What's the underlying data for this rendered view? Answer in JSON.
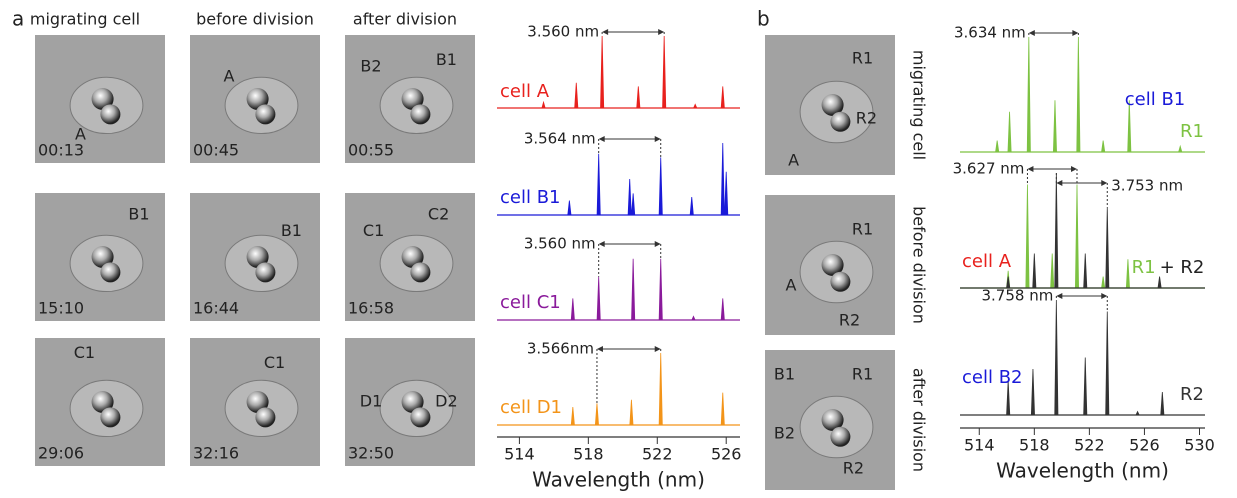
{
  "panel_a": {
    "label": "a",
    "column_titles": [
      "migrating cell",
      "before division",
      "after division"
    ],
    "images": [
      [
        {
          "time": "00:13",
          "labels": [
            {
              "text": "A",
              "color": "#e8211d"
            }
          ]
        },
        {
          "time": "00:45",
          "labels": [
            {
              "text": "A",
              "color": "#e8211d"
            }
          ]
        },
        {
          "time": "00:55",
          "labels": [
            {
              "text": "B2",
              "color": "#1a1ad8"
            },
            {
              "text": "B1",
              "color": "#1a1ad8"
            }
          ]
        }
      ],
      [
        {
          "time": "15:10",
          "labels": [
            {
              "text": "B1",
              "color": "#1a1ad8"
            }
          ]
        },
        {
          "time": "16:44",
          "labels": [
            {
              "text": "B1",
              "color": "#1a1ad8"
            }
          ]
        },
        {
          "time": "16:58",
          "labels": [
            {
              "text": "C1",
              "color": "#8a1a9b"
            },
            {
              "text": "C2",
              "color": "#8a1a9b"
            }
          ]
        }
      ],
      [
        {
          "time": "29:06",
          "labels": [
            {
              "text": "C1",
              "color": "#8a1a9b"
            }
          ]
        },
        {
          "time": "32:16",
          "labels": [
            {
              "text": "C1",
              "color": "#8a1a9b"
            }
          ]
        },
        {
          "time": "32:50",
          "labels": [
            {
              "text": "D1",
              "color": "#f39419"
            },
            {
              "text": "D2",
              "color": "#f39419"
            }
          ]
        }
      ]
    ],
    "spectra": {
      "xlim": [
        512.7,
        526.8
      ],
      "xticks": [
        514,
        518,
        522,
        526
      ],
      "xlabel": "Wavelength (nm)",
      "plots": [
        {
          "labels": [
            [
              {
                "text": "cell A",
                "color": "#e8211d"
              }
            ]
          ],
          "spacings": [
            {
              "text": "3.560 nm",
              "from": 518.8,
              "to": 522.4
            }
          ],
          "series": [
            {
              "color": "#e8211d",
              "peaks": [
                [
                  515.4,
                  0.08
                ],
                [
                  517.3,
                  0.35
                ],
                [
                  518.8,
                  1.0
                ],
                [
                  520.9,
                  0.3
                ],
                [
                  522.4,
                  1.0
                ],
                [
                  524.2,
                  0.05
                ],
                [
                  525.8,
                  0.3
                ]
              ]
            }
          ]
        },
        {
          "labels": [
            [
              {
                "text": "cell B1",
                "color": "#1a1ad8"
              }
            ]
          ],
          "spacings": [
            {
              "text": "3.564 nm",
              "from": 518.6,
              "to": 522.2
            }
          ],
          "series": [
            {
              "color": "#1a1ad8",
              "peaks": [
                [
                  516.9,
                  0.2
                ],
                [
                  518.6,
                  0.85
                ],
                [
                  520.4,
                  0.5
                ],
                [
                  520.6,
                  0.3
                ],
                [
                  522.2,
                  0.8
                ],
                [
                  524.0,
                  0.25
                ],
                [
                  525.8,
                  1.0
                ],
                [
                  526.0,
                  0.6
                ]
              ]
            }
          ]
        },
        {
          "labels": [
            [
              {
                "text": "cell C1",
                "color": "#8a1a9b"
              }
            ]
          ],
          "spacings": [
            {
              "text": "3.560 nm",
              "from": 518.6,
              "to": 522.2
            }
          ],
          "series": [
            {
              "color": "#8a1a9b",
              "peaks": [
                [
                  517.1,
                  0.3
                ],
                [
                  518.6,
                  0.6
                ],
                [
                  520.6,
                  0.85
                ],
                [
                  522.2,
                  0.85
                ],
                [
                  524.1,
                  0.05
                ],
                [
                  525.8,
                  0.3
                ]
              ]
            }
          ]
        },
        {
          "labels": [
            [
              {
                "text": "cell D1",
                "color": "#f39419"
              }
            ]
          ],
          "spacings": [
            {
              "text": "3.566nm",
              "from": 518.5,
              "to": 522.2
            }
          ],
          "series": [
            {
              "color": "#f39419",
              "peaks": [
                [
                  517.1,
                  0.25
                ],
                [
                  518.5,
                  0.3
                ],
                [
                  520.5,
                  0.35
                ],
                [
                  522.2,
                  1.0
                ],
                [
                  525.8,
                  0.45
                ]
              ]
            }
          ]
        }
      ]
    }
  },
  "panel_b": {
    "label": "b",
    "row_titles": [
      "migrating cell",
      "before division",
      "after division"
    ],
    "images": [
      {
        "labels": [
          {
            "text": "R1",
            "color": "#7dc242"
          },
          {
            "text": "R2",
            "color": "#333333"
          },
          {
            "text": "A",
            "color": "#e8211d"
          }
        ]
      },
      {
        "labels": [
          {
            "text": "R1",
            "color": "#7dc242"
          },
          {
            "text": "A",
            "color": "#e8211d"
          },
          {
            "text": "R2",
            "color": "#333333"
          }
        ]
      },
      {
        "labels": [
          {
            "text": "B1",
            "color": "#1a1ad8"
          },
          {
            "text": "R1",
            "color": "#7dc242"
          },
          {
            "text": "B2",
            "color": "#1a1ad8"
          },
          {
            "text": "R2",
            "color": "#333333"
          }
        ]
      }
    ],
    "spectra": {
      "xlim": [
        512.6,
        530.4
      ],
      "xticks": [
        514,
        518,
        522,
        526,
        530
      ],
      "xlabel": "Wavelength (nm)",
      "plots": [
        {
          "labels": [
            [
              {
                "text": "cell B1",
                "color": "#1a1ad8"
              }
            ],
            [
              {
                "text": "R1",
                "color": "#7dc242"
              }
            ]
          ],
          "spacings": [
            {
              "text": "3.634 nm",
              "from": 517.6,
              "to": 521.2
            }
          ],
          "series": [
            {
              "color": "#7dc242",
              "peaks": [
                [
                  515.3,
                  0.1
                ],
                [
                  516.2,
                  0.35
                ],
                [
                  517.6,
                  1.0
                ],
                [
                  519.5,
                  0.45
                ],
                [
                  521.2,
                  1.0
                ],
                [
                  523.0,
                  0.1
                ],
                [
                  524.9,
                  0.45
                ],
                [
                  528.6,
                  0.05
                ]
              ]
            }
          ]
        },
        {
          "labels": [
            [
              {
                "text": "cell A",
                "color": "#e8211d"
              }
            ],
            [
              {
                "text": "R1",
                "color": "#7dc242"
              },
              {
                "text": "+ R2",
                "color": "#222222"
              }
            ]
          ],
          "spacings": [
            {
              "text": "3.627 nm",
              "from": 517.5,
              "to": 521.1
            },
            {
              "text": "3.753 nm",
              "from": 519.6,
              "to": 523.3
            }
          ],
          "series": [
            {
              "color": "#7dc242",
              "peaks": [
                [
                  516.1,
                  0.15
                ],
                [
                  517.5,
                  0.9
                ],
                [
                  519.3,
                  0.3
                ],
                [
                  521.1,
                  0.9
                ],
                [
                  523.0,
                  0.1
                ],
                [
                  524.8,
                  0.25
                ]
              ]
            },
            {
              "color": "#333333",
              "peaks": [
                [
                  516.1,
                  0.1
                ],
                [
                  518.0,
                  0.3
                ],
                [
                  519.6,
                  1.0
                ],
                [
                  521.7,
                  0.3
                ],
                [
                  523.3,
                  0.7
                ],
                [
                  527.1,
                  0.1
                ]
              ]
            }
          ]
        },
        {
          "labels": [
            [
              {
                "text": "cell B2",
                "color": "#1a1ad8"
              }
            ],
            [
              {
                "text": "R2",
                "color": "#333333"
              }
            ]
          ],
          "spacings": [
            {
              "text": "3.758 nm",
              "from": 519.6,
              "to": 523.3
            }
          ],
          "series": [
            {
              "color": "#333333",
              "peaks": [
                [
                  516.1,
                  0.3
                ],
                [
                  517.9,
                  0.4
                ],
                [
                  519.6,
                  1.0
                ],
                [
                  521.7,
                  0.5
                ],
                [
                  523.3,
                  0.9
                ],
                [
                  525.5,
                  0.03
                ],
                [
                  527.3,
                  0.2
                ]
              ]
            }
          ]
        }
      ]
    }
  }
}
